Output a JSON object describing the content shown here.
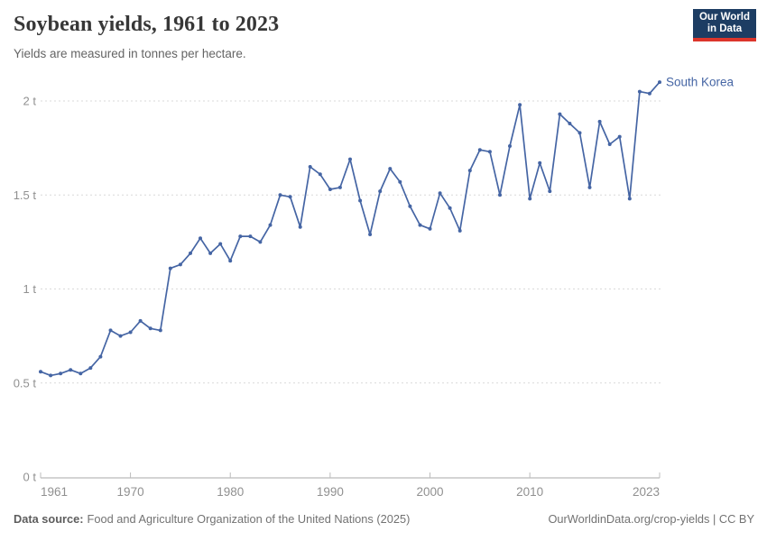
{
  "header": {
    "title": "Soybean yields, 1961 to 2023",
    "subtitle": "Yields are measured in tonnes per hectare."
  },
  "logo": {
    "line1": "Our World",
    "line2": "in Data"
  },
  "footer": {
    "source_label": "Data source:",
    "source_value": "Food and Agriculture Organization of the United Nations (2025)",
    "credit": "OurWorldinData.org/crop-yields | CC BY"
  },
  "colors": {
    "series_blue": "#4565a4",
    "grid": "#d9d9d9",
    "axis_line": "#a9a9a9",
    "tick_mark": "#bcbcbc",
    "axis_text": "#909090",
    "logo_navy": "#1d3d63",
    "logo_red": "#dc352b"
  },
  "chart_data": {
    "type": "line",
    "title": "Soybean yields, 1961 to 2023",
    "subtitle": "Yields are measured in tonnes per hectare.",
    "unit": "tonnes per hectare",
    "xlabel": "",
    "ylabel": "",
    "xlim": [
      1961,
      2023
    ],
    "ylim": [
      0,
      2
    ],
    "grid": "horizontal-dashed",
    "legend": "end-of-line-label",
    "x_ticks": [
      {
        "v": 1961,
        "label": "1961",
        "align": "start"
      },
      {
        "v": 1970,
        "label": "1970",
        "align": "middle"
      },
      {
        "v": 1980,
        "label": "1980",
        "align": "middle"
      },
      {
        "v": 1990,
        "label": "1990",
        "align": "middle"
      },
      {
        "v": 2000,
        "label": "2000",
        "align": "middle"
      },
      {
        "v": 2010,
        "label": "2010",
        "align": "middle"
      },
      {
        "v": 2023,
        "label": "2023",
        "align": "end"
      }
    ],
    "y_ticks": [
      {
        "v": 0,
        "label": "0 t"
      },
      {
        "v": 0.5,
        "label": "0.5 t"
      },
      {
        "v": 1,
        "label": "1 t"
      },
      {
        "v": 1.5,
        "label": "1.5 t"
      },
      {
        "v": 2,
        "label": "2 t"
      }
    ],
    "series": [
      {
        "name": "South Korea",
        "color": "#4565a4",
        "x": [
          1961,
          1962,
          1963,
          1964,
          1965,
          1966,
          1967,
          1968,
          1969,
          1970,
          1971,
          1972,
          1973,
          1974,
          1975,
          1976,
          1977,
          1978,
          1979,
          1980,
          1981,
          1982,
          1983,
          1984,
          1985,
          1986,
          1987,
          1988,
          1989,
          1990,
          1991,
          1992,
          1993,
          1994,
          1995,
          1996,
          1997,
          1998,
          1999,
          2000,
          2001,
          2002,
          2003,
          2004,
          2005,
          2006,
          2007,
          2008,
          2009,
          2010,
          2011,
          2012,
          2013,
          2014,
          2015,
          2016,
          2017,
          2018,
          2019,
          2020,
          2021,
          2022,
          2023
        ],
        "values": [
          0.56,
          0.54,
          0.55,
          0.57,
          0.55,
          0.58,
          0.64,
          0.78,
          0.75,
          0.77,
          0.83,
          0.79,
          0.78,
          1.11,
          1.13,
          1.19,
          1.27,
          1.19,
          1.24,
          1.15,
          1.28,
          1.28,
          1.25,
          1.34,
          1.5,
          1.49,
          1.33,
          1.65,
          1.61,
          1.53,
          1.54,
          1.69,
          1.47,
          1.29,
          1.52,
          1.64,
          1.57,
          1.44,
          1.34,
          1.32,
          1.51,
          1.43,
          1.31,
          1.63,
          1.74,
          1.73,
          1.5,
          1.76,
          1.98,
          1.48,
          1.67,
          1.52,
          1.93,
          1.88,
          1.83,
          1.54,
          1.89,
          1.77,
          1.81,
          1.48,
          2.05,
          2.04,
          2.1
        ]
      }
    ]
  }
}
